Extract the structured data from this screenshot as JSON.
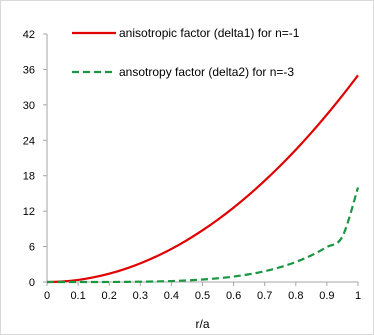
{
  "chart_data": {
    "type": "line",
    "xlabel": "r/a",
    "ylabel": "",
    "xlim": [
      0,
      1
    ],
    "ylim": [
      0,
      42
    ],
    "x_ticks": [
      "0",
      "0.1",
      "0.2",
      "0.3",
      "0.4",
      "0.5",
      "0.6",
      "0.7",
      "0.8",
      "0.9",
      "1"
    ],
    "y_ticks": [
      "0",
      "6",
      "12",
      "18",
      "24",
      "30",
      "36",
      "42"
    ],
    "legend_position": "top",
    "grid": false,
    "x": [
      0,
      0.05,
      0.1,
      0.15,
      0.2,
      0.25,
      0.3,
      0.35,
      0.4,
      0.45,
      0.5,
      0.55,
      0.6,
      0.65,
      0.7,
      0.75,
      0.8,
      0.85,
      0.9,
      0.95,
      1
    ],
    "series": [
      {
        "name": "anisotropic factor (delta1) for n=-1",
        "color": "#e00000",
        "style": "solid",
        "values": [
          0,
          0.09,
          0.35,
          0.79,
          1.4,
          2.19,
          3.15,
          4.29,
          5.6,
          7.09,
          8.75,
          10.59,
          12.6,
          14.79,
          17.15,
          19.69,
          22.4,
          25.29,
          28.35,
          31.59,
          35
        ]
      },
      {
        "name": "ansotropy factor (delta2) for n=-3",
        "color": "#1a9641",
        "style": "dashed",
        "values": [
          0,
          0,
          0,
          0,
          0.01,
          0.02,
          0.05,
          0.09,
          0.16,
          0.27,
          0.42,
          0.63,
          0.92,
          1.31,
          1.83,
          2.51,
          3.39,
          4.51,
          5.93,
          7.71,
          16
        ]
      }
    ]
  }
}
